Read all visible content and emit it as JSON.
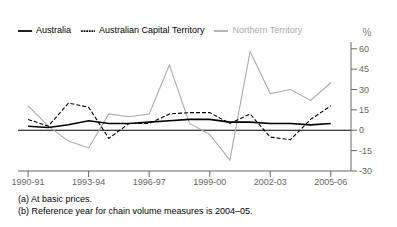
{
  "chart_data": {
    "type": "line",
    "x": [
      1990.5,
      1991.5,
      1992.5,
      1993.5,
      1994.5,
      1995.5,
      1996.5,
      1997.5,
      1998.5,
      1999.5,
      2000.5,
      2001.5,
      2002.5,
      2003.5,
      2004.5,
      2005.5
    ],
    "series": [
      {
        "name": "Northern Territory",
        "color": "#aaaaaa",
        "line_style": "solid",
        "values": [
          18,
          3,
          -8,
          -13,
          12,
          10,
          12,
          48,
          5,
          -3,
          -22,
          58,
          27,
          30,
          22,
          35
        ]
      },
      {
        "name": "Australian Capital Territory",
        "color": "#000000",
        "line_style": "dashed",
        "values": [
          8,
          3,
          20,
          17,
          -6,
          5,
          5,
          12,
          13,
          13,
          5,
          12,
          -5,
          -7,
          8,
          18
        ]
      },
      {
        "name": "Australia",
        "color": "#000000",
        "line_style": "solid",
        "values": [
          3,
          2,
          4,
          7,
          5,
          5,
          6,
          7,
          8,
          8,
          6,
          6,
          5,
          5,
          4,
          5
        ]
      }
    ],
    "xlim": [
      1990.0,
      2006.5
    ],
    "xticks": [
      {
        "value": 1990.5,
        "label": "1990-91"
      },
      {
        "value": 1993.5,
        "label": "1993-94"
      },
      {
        "value": 1996.5,
        "label": "1996-97"
      },
      {
        "value": 1999.5,
        "label": "1999-00"
      },
      {
        "value": 2002.5,
        "label": "2002-03"
      },
      {
        "value": 2005.5,
        "label": "2005-06"
      }
    ],
    "ylim": [
      -30,
      65
    ],
    "yticks": [
      -30,
      -15,
      0,
      15,
      30,
      45,
      60
    ],
    "ylabel": "%",
    "hlines": [
      0
    ],
    "annotations": [
      "(a) At basic prices.",
      "(b) Reference year for chain volume measures is 2004–05."
    ],
    "legend": "upper left",
    "grid": false
  }
}
